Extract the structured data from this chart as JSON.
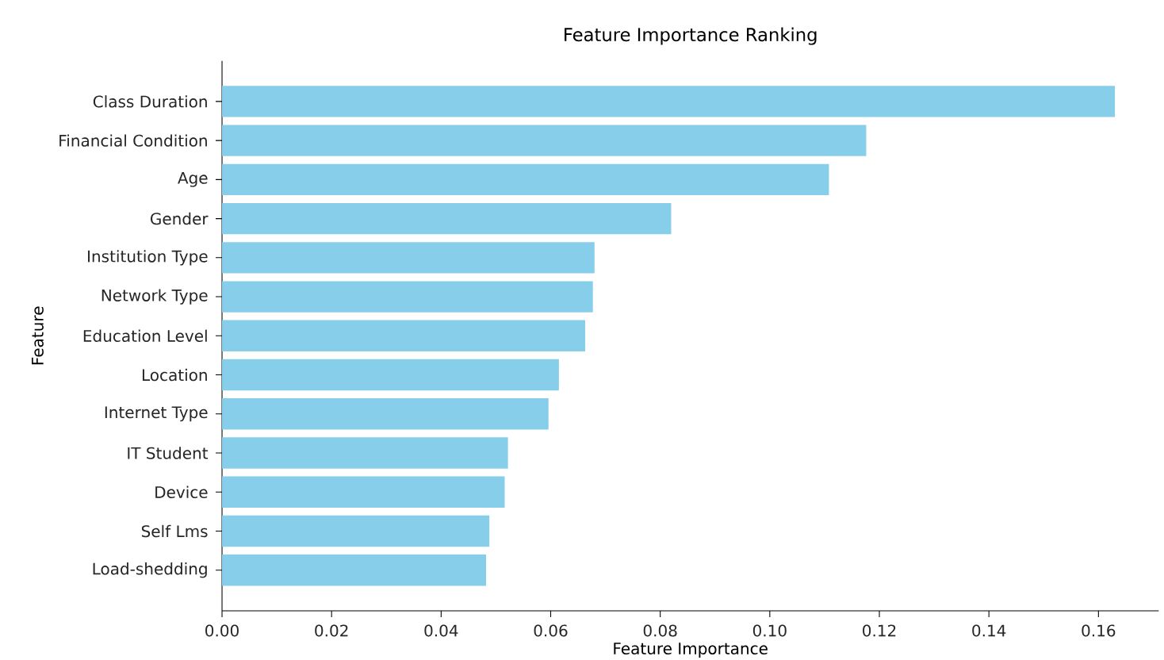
{
  "chart_data": {
    "type": "bar",
    "orientation": "horizontal",
    "title": "Feature Importance Ranking",
    "xlabel": "Feature Importance",
    "ylabel": "Feature",
    "categories": [
      "Class Duration",
      "Financial Condition",
      "Age",
      "Gender",
      "Institution Type",
      "Network Type",
      "Education Level",
      "Location",
      "Internet Type",
      "IT Student",
      "Device",
      "Self Lms",
      "Load-shedding"
    ],
    "values": [
      0.163,
      0.1176,
      0.1108,
      0.082,
      0.068,
      0.0677,
      0.0663,
      0.0615,
      0.0596,
      0.0522,
      0.0516,
      0.0488,
      0.0482
    ],
    "color": "#87ceeb",
    "xlim": [
      0,
      0.171
    ],
    "xticks": [
      {
        "value": 0,
        "label": "0.00"
      },
      {
        "value": 0.02,
        "label": "0.02"
      },
      {
        "value": 0.04,
        "label": "0.04"
      },
      {
        "value": 0.06,
        "label": "0.06"
      },
      {
        "value": 0.08,
        "label": "0.08"
      },
      {
        "value": 0.1,
        "label": "0.10"
      },
      {
        "value": 0.12,
        "label": "0.12"
      },
      {
        "value": 0.14,
        "label": "0.14"
      },
      {
        "value": 0.16,
        "label": "0.16"
      }
    ]
  }
}
